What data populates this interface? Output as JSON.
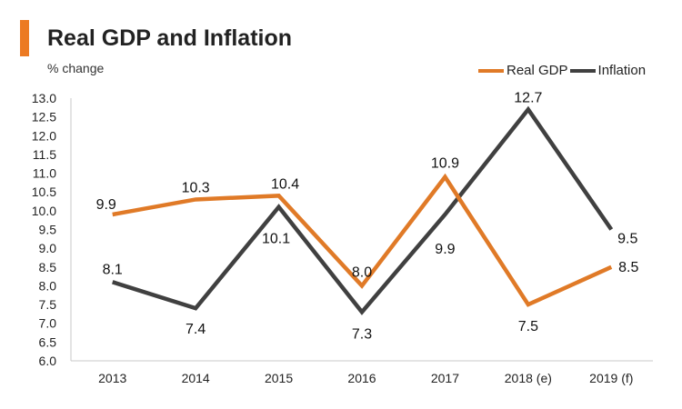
{
  "header": {
    "title": "Real GDP and Inflation",
    "subtitle": "% change"
  },
  "colors": {
    "accent": "#ec7a22",
    "gdp": "#e07a27",
    "inflation": "#404040"
  },
  "chart_data": {
    "type": "line",
    "title": "Real GDP and Inflation",
    "ylabel": "% change",
    "xlabel": "",
    "categories": [
      "2013",
      "2014",
      "2015",
      "2016",
      "2017",
      "2018 (e)",
      "2019 (f)"
    ],
    "ylim": [
      6.0,
      13.0
    ],
    "yticks": [
      "6.0",
      "6.5",
      "7.0",
      "7.5",
      "8.0",
      "8.5",
      "9.0",
      "9.5",
      "10.0",
      "10.5",
      "11.0",
      "11.5",
      "12.0",
      "12.5",
      "13.0"
    ],
    "legend_position": "top-right",
    "series": [
      {
        "name": "Real GDP",
        "values": [
          9.9,
          10.3,
          10.4,
          8.0,
          10.9,
          7.5,
          8.5
        ],
        "labels": [
          "9.9",
          "10.3",
          "10.4",
          "8.0",
          "10.9",
          "7.5",
          "8.5"
        ]
      },
      {
        "name": "Inflation",
        "values": [
          8.1,
          7.4,
          10.1,
          7.3,
          9.9,
          12.7,
          9.5
        ],
        "labels": [
          "8.1",
          "7.4",
          "10.1",
          "7.3",
          "9.9",
          "12.7",
          "9.5"
        ]
      }
    ]
  }
}
